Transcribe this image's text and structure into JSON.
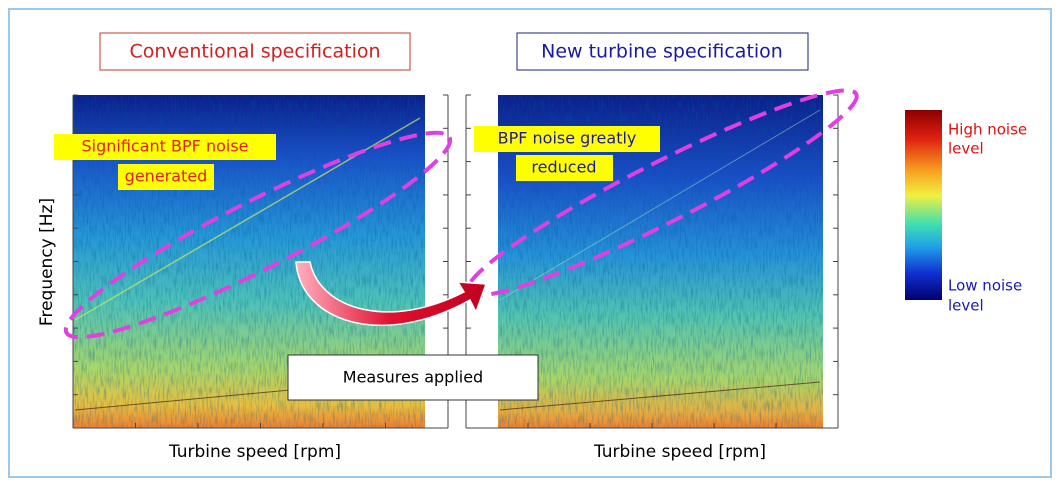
{
  "panels": [
    {
      "title": "Conventional specification",
      "annotation": [
        "Significant BPF noise",
        "generated"
      ],
      "x_axis_label": "Turbine speed [rpm]"
    },
    {
      "title": "New turbine specification",
      "annotation": [
        "BPF noise greatly",
        "reduced"
      ],
      "x_axis_label": "Turbine speed [rpm]"
    }
  ],
  "y_axis_label": "Frequency [Hz]",
  "colorbar": {
    "high_label": [
      "High noise",
      "level"
    ],
    "low_label": [
      "Low noise",
      "level"
    ]
  },
  "arrow_label": "Measures applied"
}
